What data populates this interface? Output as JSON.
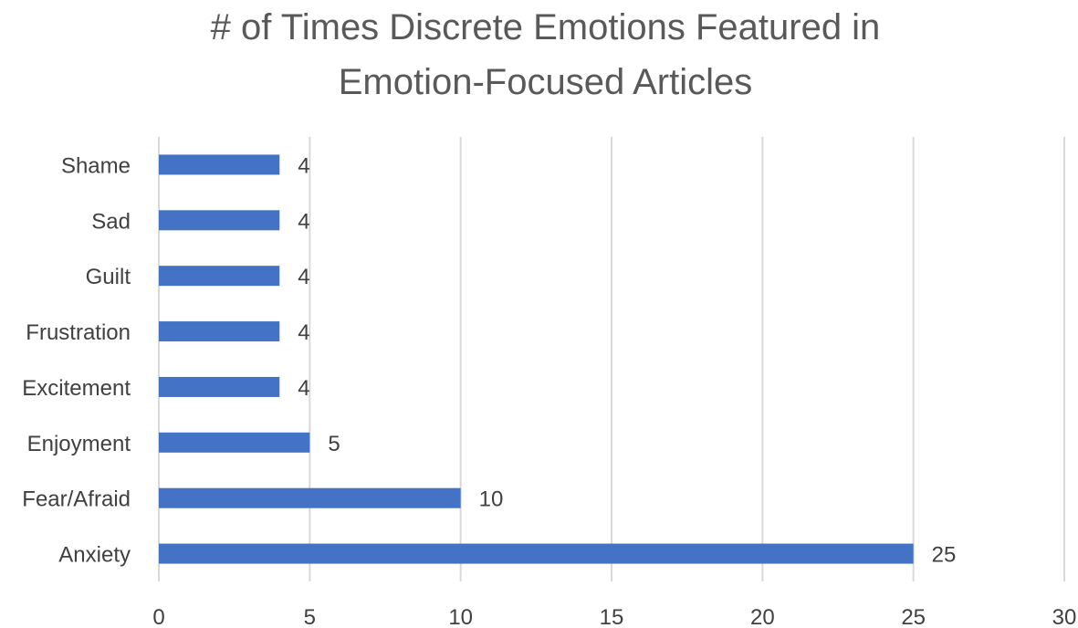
{
  "chart_data": {
    "type": "bar",
    "orientation": "horizontal",
    "title_lines": [
      "# of Times Discrete Emotions Featured in",
      "Emotion-Focused Articles"
    ],
    "categories": [
      "Shame",
      "Sad",
      "Guilt",
      "Frustration",
      "Excitement",
      "Enjoyment",
      "Fear/Afraid",
      "Anxiety"
    ],
    "values": [
      4,
      4,
      4,
      4,
      4,
      5,
      10,
      25
    ],
    "xlim": [
      0,
      30
    ],
    "x_ticks": [
      0,
      5,
      10,
      15,
      20,
      25,
      30
    ],
    "xlabel": "",
    "ylabel": "",
    "grid": "vertical",
    "legend": "none",
    "data_labels": true,
    "colors": {
      "bar": "#4472C4",
      "grid": "#D9D9D9",
      "text": "#404040",
      "title": "#595959"
    }
  }
}
